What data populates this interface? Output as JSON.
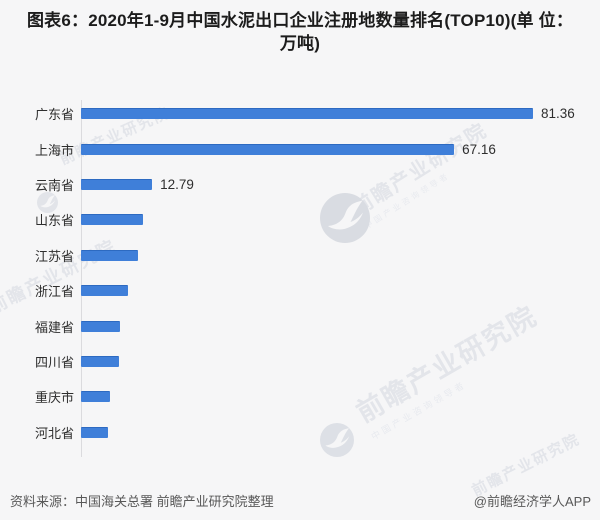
{
  "title": {
    "line1": "图表6：2020年1-9月中国水泥出口企业注册地数量排名(TOP10)(单 位：",
    "line2": "万吨)"
  },
  "chart_data": {
    "type": "bar",
    "orientation": "horizontal",
    "title": "图表6：2020年1-9月中国水泥出口企业注册地数量排名(TOP10)(单位：万吨)",
    "unit": "万吨",
    "categories": [
      "广东省",
      "上海市",
      "云南省",
      "山东省",
      "江苏省",
      "浙江省",
      "福建省",
      "四川省",
      "重庆市",
      "河北省"
    ],
    "values": [
      81.36,
      67.16,
      12.79,
      11.2,
      10.2,
      8.5,
      7.1,
      6.9,
      5.3,
      4.9
    ],
    "value_labels": [
      "81.36",
      "67.16",
      "12.79",
      "",
      "",
      "",
      "",
      "",
      "",
      ""
    ],
    "xlim": [
      0,
      92
    ],
    "grid": false,
    "legend": false,
    "bar_color": "#3f7fd9"
  },
  "footer": {
    "source": "资料来源：中国海关总署 前瞻产业研究院整理",
    "credit": "@前瞻经济学人APP"
  },
  "watermark": {
    "text": "前瞻产业研究院",
    "subtext": "中国产业咨询领导者"
  },
  "colors": {
    "bar": "#3f7fd9",
    "bar_top_edge": "#2d6ac1",
    "background": "#f6f6f7",
    "axis_line": "#dbdbde",
    "title_text": "#1c1c1c",
    "label_text": "#2e2e2e",
    "footer_text": "#585858",
    "watermark": "#e3e5ea"
  }
}
